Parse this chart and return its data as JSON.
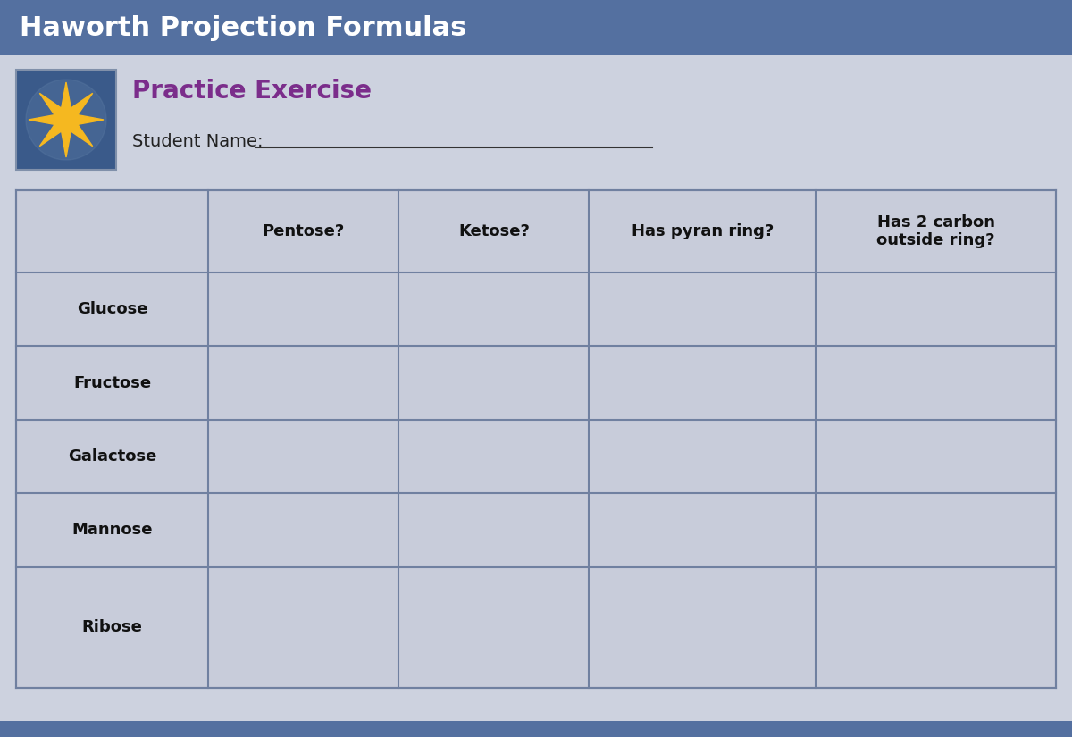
{
  "title": "Haworth Projection Formulas",
  "title_bg_color": "#5470A0",
  "title_text_color": "#FFFFFF",
  "title_fontsize": 22,
  "body_bg_color": "#CDD2DF",
  "practice_title": "Practice Exercise",
  "practice_title_color": "#7B2D8B",
  "practice_title_fontsize": 20,
  "student_label": "Student Name:",
  "student_label_fontsize": 14,
  "col_headers": [
    "Pentose?",
    "Ketose?",
    "Has pyran ring?",
    "Has 2 carbon\noutside ring?"
  ],
  "row_labels": [
    "Glucose",
    "Fructose",
    "Galactose",
    "Mannose",
    "Ribose"
  ],
  "header_fontsize": 13,
  "row_fontsize": 13,
  "table_bg_color": "#C8CCDA",
  "table_line_color": "#7080A0",
  "star_box_color": "#3A5A8A",
  "star_color": "#F5B820",
  "bottom_bar_color": "#5470A0",
  "bottom_bar_height": 18
}
